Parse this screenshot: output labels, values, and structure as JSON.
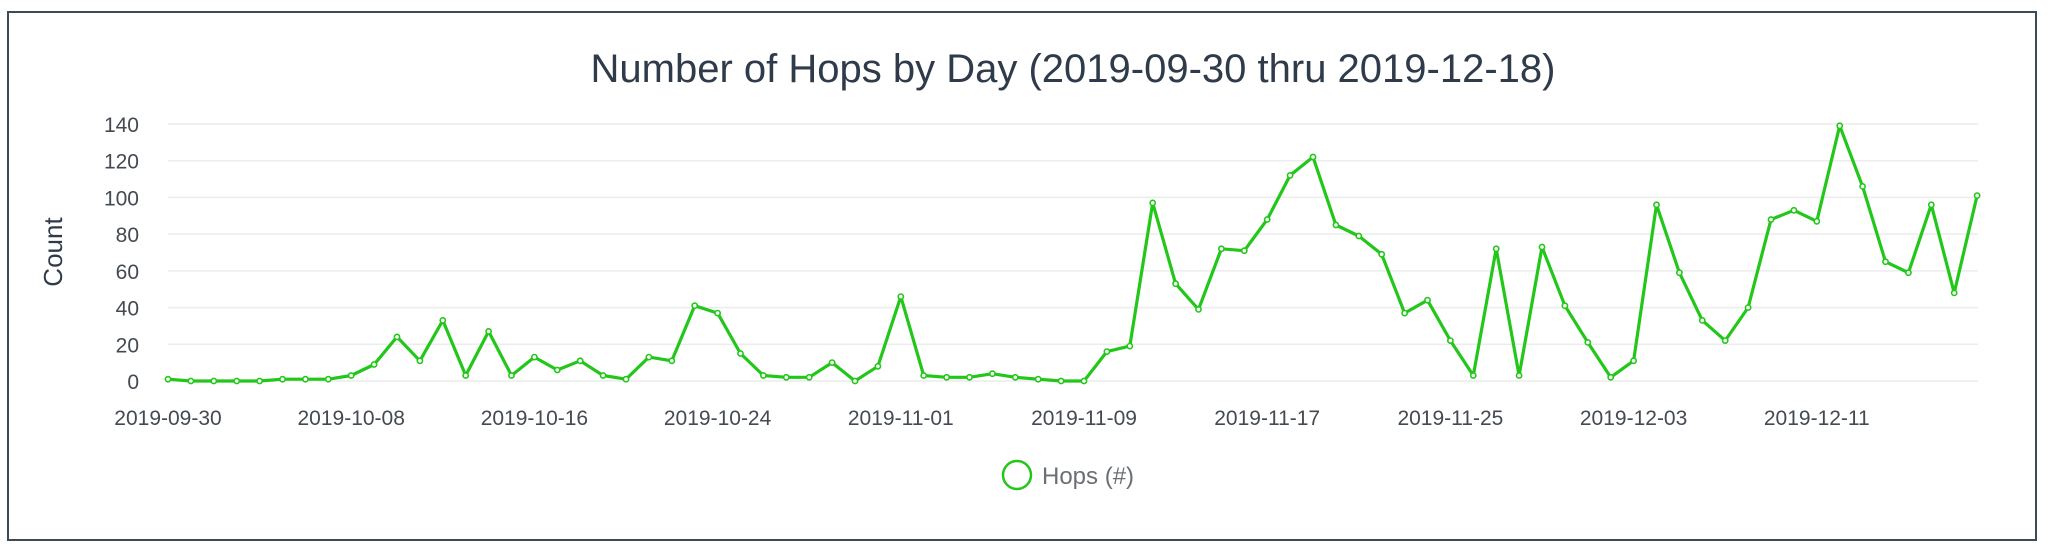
{
  "chart_data": {
    "type": "line",
    "title": "Number of Hops by Day (2019-09-30 thru 2019-12-18)",
    "ylabel": "Count",
    "xlabel": "",
    "ylim": [
      0,
      140
    ],
    "yticks": [
      0,
      20,
      40,
      60,
      80,
      100,
      120,
      140
    ],
    "x_start": "2019-09-30",
    "x_end": "2019-12-18",
    "xticks": [
      "2019-09-30",
      "2019-10-08",
      "2019-10-16",
      "2019-10-24",
      "2019-11-01",
      "2019-11-09",
      "2019-11-17",
      "2019-11-25",
      "2019-12-03",
      "2019-12-11"
    ],
    "grid": true,
    "legend_position": "bottom",
    "color": "#22c71a",
    "series": [
      {
        "name": "Hops (#)",
        "values": [
          1,
          0,
          0,
          0,
          0,
          1,
          1,
          1,
          3,
          9,
          24,
          11,
          33,
          3,
          27,
          3,
          13,
          6,
          11,
          3,
          1,
          13,
          11,
          41,
          37,
          15,
          3,
          2,
          2,
          10,
          0,
          8,
          46,
          3,
          2,
          2,
          4,
          2,
          1,
          0,
          0,
          16,
          19,
          97,
          53,
          39,
          72,
          71,
          88,
          112,
          122,
          85,
          79,
          69,
          37,
          44,
          22,
          3,
          72,
          3,
          73,
          41,
          21,
          2,
          11,
          96,
          59,
          33,
          22,
          40,
          88,
          93,
          87,
          139,
          106,
          65,
          59,
          96,
          48,
          101
        ]
      }
    ]
  }
}
